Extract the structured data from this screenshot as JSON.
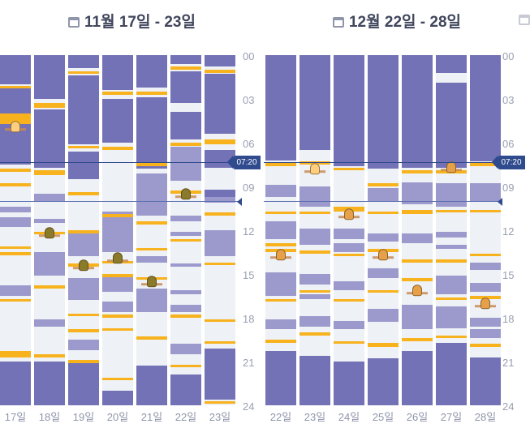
{
  "weeks": [
    {
      "title": "11월 17일 - 23일",
      "hour_labels": [
        "00",
        "03",
        "06",
        "09",
        "12",
        "15",
        "18",
        "21",
        "24"
      ],
      "current_time": "07:20",
      "days": [
        {
          "label": "17일",
          "sleep": [
            [
              0,
              2
            ],
            [
              2.1,
              7.5
            ],
            [
              21,
              24
            ]
          ],
          "nap": [
            [
              10.4,
              10.8
            ],
            [
              11.1,
              11.8
            ],
            [
              15.8,
              16.5
            ]
          ],
          "feed": [
            [
              2.1,
              2.3
            ],
            [
              4,
              4.7
            ],
            [
              7.8,
              8
            ],
            [
              8.8,
              9
            ],
            [
              13.1,
              13.3
            ],
            [
              13.5,
              13.7
            ],
            [
              16.7,
              16.9
            ],
            [
              20.3,
              20.7
            ]
          ],
          "marker": {
            "hour": 5,
            "color": "#ffcf7d"
          }
        },
        {
          "label": "18일",
          "sleep": [
            [
              0,
              3
            ],
            [
              3.7,
              7.7
            ],
            [
              21,
              24
            ]
          ],
          "nap": [
            [
              9.5,
              10
            ],
            [
              11.2,
              11.5
            ],
            [
              13.5,
              15.1
            ],
            [
              18.1,
              18.6
            ]
          ],
          "feed": [
            [
              3.3,
              3.6
            ],
            [
              7.9,
              8.2
            ],
            [
              12.1,
              12.3
            ],
            [
              15.8,
              16
            ],
            [
              20.5,
              20.7
            ]
          ],
          "marker": {
            "hour": 12.3,
            "color": "#8a7a2c"
          }
        },
        {
          "label": "19일",
          "sleep": [
            [
              0,
              0.9
            ],
            [
              1.4,
              6.1
            ],
            [
              6.6,
              8.5
            ],
            [
              21.1,
              24
            ]
          ],
          "nap": [
            [
              12.2,
              13.8
            ],
            [
              15.3,
              16.8
            ],
            [
              19.5,
              20.2
            ]
          ],
          "feed": [
            [
              1.1,
              1.3
            ],
            [
              6.2,
              6.4
            ],
            [
              9.4,
              9.6
            ],
            [
              12,
              12.2
            ],
            [
              14.3,
              14.5
            ],
            [
              17.7,
              17.9
            ],
            [
              18.8,
              19
            ],
            [
              20.9,
              21.1
            ]
          ],
          "marker": {
            "hour": 14.5,
            "color": "#8a7a2c"
          }
        },
        {
          "label": "20일",
          "sleep": [
            [
              0,
              2.4
            ],
            [
              3,
              6
            ],
            [
              23,
              24
            ]
          ],
          "nap": [
            [
              10.7,
              13.5
            ],
            [
              15.2,
              16.2
            ],
            [
              16.9,
              17.6
            ]
          ],
          "feed": [
            [
              2.5,
              2.7
            ],
            [
              6.3,
              6.5
            ],
            [
              10.9,
              11.1
            ],
            [
              14.1,
              14.3
            ],
            [
              15,
              15.2
            ],
            [
              17.8,
              18
            ],
            [
              18.7,
              18.9
            ],
            [
              22.1,
              22.3
            ]
          ],
          "marker": {
            "hour": 14,
            "color": "#8a7a2c"
          }
        },
        {
          "label": "21일",
          "sleep": [
            [
              0,
              2.2
            ],
            [
              2.9,
              7.8
            ],
            [
              21.3,
              24
            ]
          ],
          "nap": [
            [
              8.1,
              11
            ],
            [
              13.8,
              14.2
            ],
            [
              16,
              17.6
            ]
          ],
          "feed": [
            [
              2.5,
              2.7
            ],
            [
              7.4,
              7.6
            ],
            [
              11.4,
              11.6
            ],
            [
              13.2,
              13.4
            ],
            [
              15.2,
              15.4
            ],
            [
              19.3,
              19.5
            ]
          ],
          "marker": {
            "hour": 15.6,
            "color": "#8a7a2c"
          }
        },
        {
          "label": "22일",
          "sleep": [
            [
              0,
              0.6
            ],
            [
              1.1,
              3.3
            ],
            [
              3.9,
              5.8
            ],
            [
              21.9,
              24
            ]
          ],
          "nap": [
            [
              6.3,
              8.6
            ],
            [
              11,
              11.4
            ],
            [
              12.1,
              12.4
            ],
            [
              14.3,
              14.5
            ],
            [
              16.1,
              16.4
            ],
            [
              17.1,
              17.6
            ],
            [
              19.8,
              20.5
            ]
          ],
          "feed": [
            [
              0.8,
              1
            ],
            [
              6,
              6.2
            ],
            [
              9.3,
              9.5
            ],
            [
              12.6,
              12.8
            ],
            [
              17.8,
              18
            ],
            [
              21.2,
              21.4
            ]
          ],
          "marker": {
            "hour": 9.6,
            "color": "#8a7a2c"
          }
        },
        {
          "label": "23일",
          "sleep": [
            [
              0,
              0.8
            ],
            [
              1.3,
              5.4
            ],
            [
              6.5,
              7.7
            ],
            [
              9.2,
              9.7
            ],
            [
              20.1,
              23.6
            ]
          ],
          "nap": [
            [
              9.7,
              10.1
            ],
            [
              12,
              13.8
            ]
          ],
          "feed": [
            [
              1,
              1.2
            ],
            [
              5.8,
              6.1
            ],
            [
              10.8,
              11
            ],
            [
              14.2,
              14.4
            ],
            [
              18.1,
              18.3
            ],
            [
              19.6,
              19.8
            ],
            [
              23.7,
              23.9
            ]
          ],
          "marker": null
        }
      ],
      "hour_markers": [
        5,
        12.3,
        14.5,
        14,
        15.6,
        9.6
      ]
    },
    {
      "title": "12월 22일 - 28일",
      "hour_labels": [
        "00",
        "03",
        "06",
        "09",
        "12",
        "15",
        "18",
        "21",
        "24"
      ],
      "current_time": "07:20",
      "days": [
        {
          "label": "22일",
          "sleep": [
            [
              0,
              7.2
            ],
            [
              20.3,
              24
            ]
          ],
          "nap": [
            [
              8.9,
              9.7
            ],
            [
              11.4,
              12.6
            ],
            [
              14.9,
              16.5
            ],
            [
              18.1,
              18.8
            ]
          ],
          "feed": [
            [
              7.4,
              7.6
            ],
            [
              10.7,
              10.9
            ],
            [
              12.9,
              13.1
            ],
            [
              13.3,
              13.5
            ],
            [
              16.7,
              16.9
            ],
            [
              19.5,
              19.7
            ]
          ],
          "marker": {
            "hour": 13.8,
            "color": "#e6a04a"
          }
        },
        {
          "label": "23일",
          "sleep": [
            [
              0,
              6.5
            ],
            [
              20.6,
              24
            ]
          ],
          "nap": [
            [
              9,
              10.4
            ],
            [
              11.9,
              13
            ],
            [
              15,
              15.7
            ],
            [
              16.4,
              16.7
            ],
            [
              17.9,
              18.6
            ]
          ],
          "feed": [
            [
              7.3,
              7.5
            ],
            [
              10.7,
              10.9
            ],
            [
              13.4,
              13.6
            ],
            [
              16.1,
              16.3
            ],
            [
              19,
              19.2
            ]
          ],
          "marker": {
            "hour": 7.9,
            "color": "#ffcf7d"
          }
        },
        {
          "label": "24일",
          "sleep": [
            [
              0,
              7.6
            ],
            [
              21,
              24
            ]
          ],
          "nap": [
            [
              11.9,
              12.6
            ],
            [
              12.9,
              13.5
            ],
            [
              15.5,
              16.1
            ],
            [
              18.2,
              18.8
            ]
          ],
          "feed": [
            [
              7.7,
              7.9
            ],
            [
              10.4,
              10.7
            ],
            [
              13.6,
              13.8
            ],
            [
              16.7,
              16.9
            ],
            [
              19.6,
              19.8
            ]
          ],
          "marker": {
            "hour": 11,
            "color": "#e6a04a"
          }
        },
        {
          "label": "25일",
          "sleep": [
            [
              0,
              7.8
            ],
            [
              20.8,
              24
            ]
          ],
          "nap": [
            [
              9.1,
              10
            ],
            [
              12.2,
              12.8
            ],
            [
              14.6,
              15.3
            ],
            [
              17.4,
              18.3
            ]
          ],
          "feed": [
            [
              8.8,
              9
            ],
            [
              10.7,
              10.9
            ],
            [
              13.3,
              13.5
            ],
            [
              16.1,
              16.3
            ],
            [
              19.7,
              20
            ]
          ],
          "marker": {
            "hour": 13.8,
            "color": "#e6a04a"
          }
        },
        {
          "label": "26일",
          "sleep": [
            [
              0,
              7.7
            ],
            [
              20.3,
              24
            ]
          ],
          "nap": [
            [
              8.7,
              10.2
            ],
            [
              12.2,
              12.9
            ],
            [
              17.1,
              18.8
            ]
          ],
          "feed": [
            [
              7.9,
              8.1
            ],
            [
              10.6,
              10.9
            ],
            [
              14,
              14.2
            ],
            [
              15.3,
              15.5
            ],
            [
              19.4,
              19.6
            ]
          ],
          "marker": {
            "hour": 16.2,
            "color": "#e6a04a"
          }
        },
        {
          "label": "27일",
          "sleep": [
            [
              0,
              1.2
            ],
            [
              1.9,
              7.7
            ],
            [
              19.7,
              24
            ]
          ],
          "nap": [
            [
              8.8,
              10.4
            ],
            [
              12.1,
              12.5
            ],
            [
              13,
              13.3
            ],
            [
              15.1,
              16.4
            ],
            [
              17.2,
              18.7
            ]
          ],
          "feed": [
            [
              7.9,
              8.1
            ],
            [
              10.6,
              10.8
            ],
            [
              14,
              14.2
            ],
            [
              16.6,
              16.8
            ],
            [
              19.2,
              19.4
            ]
          ],
          "marker": {
            "hour": 7.8,
            "color": "#e6a04a"
          }
        },
        {
          "label": "28일",
          "sleep": [
            [
              0,
              7.3
            ],
            [
              20.7,
              24
            ]
          ],
          "nap": [
            [
              8.8,
              10
            ],
            [
              14.2,
              14.7
            ],
            [
              15.6,
              16.2
            ],
            [
              18,
              18.6
            ],
            [
              18.8,
              19.4
            ]
          ],
          "feed": [
            [
              7.4,
              7.6
            ],
            [
              10.6,
              10.8
            ],
            [
              13.6,
              13.8
            ],
            [
              16.5,
              16.7
            ],
            [
              19.8,
              20
            ]
          ],
          "marker": {
            "hour": 17.1,
            "color": "#e6a04a"
          }
        }
      ]
    }
  ],
  "colors": {
    "sleep": "#7472b6",
    "nap": "#9c9acc",
    "feed": "#f7b21d",
    "time_line": "#2f4a8d",
    "text": "#40465c",
    "muted": "#8f96aa"
  }
}
